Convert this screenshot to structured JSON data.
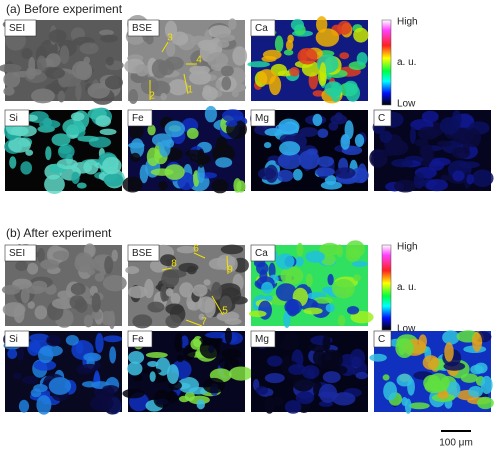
{
  "sections": [
    {
      "title": "(a) Before experiment",
      "panels": [
        "SEI",
        "BSE",
        "Ca",
        "Si",
        "Fe",
        "Mg",
        "C"
      ],
      "annotations": [
        "3",
        "4",
        "2",
        "1"
      ]
    },
    {
      "title": "(b) After experiment",
      "panels": [
        "SEI",
        "BSE",
        "Ca",
        "Si",
        "Fe",
        "Mg",
        "C"
      ],
      "annotations": [
        "6",
        "8",
        "9",
        "5",
        "7"
      ]
    }
  ],
  "colorbar": {
    "high": "High",
    "mid": "a. u.",
    "low": "Low"
  },
  "scale_bar": "100 μm"
}
